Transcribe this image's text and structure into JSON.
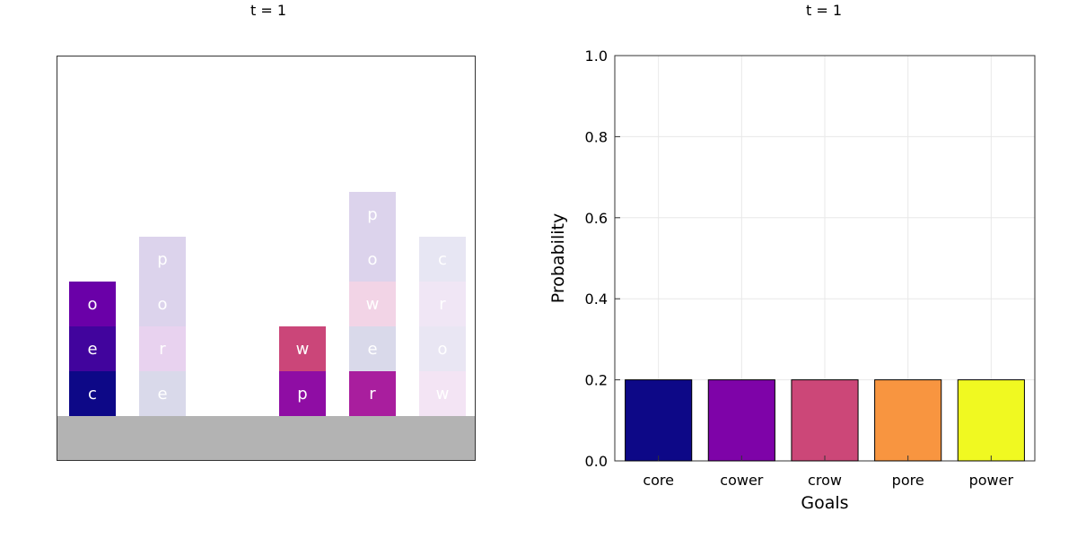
{
  "blocks_panel": {
    "title": "t = 1",
    "ground_color": "#b3b3b3",
    "stacks": [
      {
        "blocks": [
          {
            "letter": "c",
            "color": "#0d0887"
          },
          {
            "letter": "e",
            "color": "#41049d"
          },
          {
            "letter": "o",
            "color": "#6a00a8"
          }
        ]
      },
      {
        "blocks": [
          {
            "letter": "e",
            "color": "#d9d9ea"
          },
          {
            "letter": "r",
            "color": "#e8d2ef"
          },
          {
            "letter": "o",
            "color": "#dcd3ec"
          },
          {
            "letter": "p",
            "color": "#dcd3ec"
          }
        ]
      },
      {
        "blocks": []
      },
      {
        "blocks": [
          {
            "letter": "p",
            "color": "#8f0da4"
          },
          {
            "letter": "w",
            "color": "#cb4679"
          }
        ]
      },
      {
        "blocks": [
          {
            "letter": "r",
            "color": "#a91e9e"
          },
          {
            "letter": "e",
            "color": "#d9d9ea"
          },
          {
            "letter": "w",
            "color": "#f2d4e6"
          },
          {
            "letter": "o",
            "color": "#dcd3ec"
          },
          {
            "letter": "p",
            "color": "#dcd3ec"
          }
        ]
      },
      {
        "blocks": [
          {
            "letter": "w",
            "color": "#f3e4f4"
          },
          {
            "letter": "o",
            "color": "#e9e6f3"
          },
          {
            "letter": "r",
            "color": "#f0e6f5"
          },
          {
            "letter": "c",
            "color": "#e7e6f3"
          }
        ]
      }
    ]
  },
  "chart_data": {
    "type": "bar",
    "title": "t = 1",
    "categories": [
      "core",
      "cower",
      "crow",
      "pore",
      "power"
    ],
    "values": [
      0.2,
      0.2,
      0.2,
      0.2,
      0.2
    ],
    "colors": [
      "#0d0887",
      "#7e03a8",
      "#cc4778",
      "#f89540",
      "#f0f921"
    ],
    "xlabel": "Goals",
    "ylabel": "Probability",
    "ylim": [
      0,
      1
    ],
    "yticks": [
      "0.0",
      "0.2",
      "0.4",
      "0.6",
      "0.8",
      "1.0"
    ],
    "grid": true,
    "legend": "none"
  }
}
